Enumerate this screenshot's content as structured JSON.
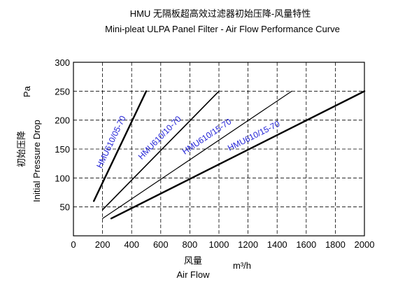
{
  "chart_data": {
    "type": "line",
    "title": "HMU 无隔板超高效过滤器初始压降-风量特性",
    "subtitle": "Mini-pleat ULPA Panel Filter - Air Flow Performance Curve",
    "ylabel_cn": "初始压降",
    "ylabel": "Initial Pressure Drop",
    "yunit": "Pa",
    "xlabel_cn": "风量",
    "xlabel": "Air Flow",
    "xunit": "m³/h",
    "xlim": [
      0,
      2000
    ],
    "ylim": [
      0,
      300
    ],
    "xticks": [
      0,
      200,
      400,
      600,
      800,
      1000,
      1200,
      1400,
      1600,
      1800,
      2000
    ],
    "yticks": [
      50,
      100,
      150,
      200,
      250,
      300
    ],
    "grid": "dashed",
    "series": [
      {
        "name": "HMU610/05-70",
        "x": [
          140,
          500
        ],
        "y": [
          60,
          250
        ],
        "color": "#000000"
      },
      {
        "name": "HMU610/10-70",
        "x": [
          200,
          1000
        ],
        "y": [
          45,
          250
        ],
        "color": "#000000"
      },
      {
        "name": "HMU610/15-70",
        "x": [
          200,
          1500
        ],
        "y": [
          30,
          250
        ],
        "color": "#000000"
      },
      {
        "name": "HMU610/15-70",
        "x": [
          260,
          2000
        ],
        "y": [
          30,
          250
        ],
        "color": "#000000"
      }
    ],
    "label_color": "#1f1fd6"
  }
}
